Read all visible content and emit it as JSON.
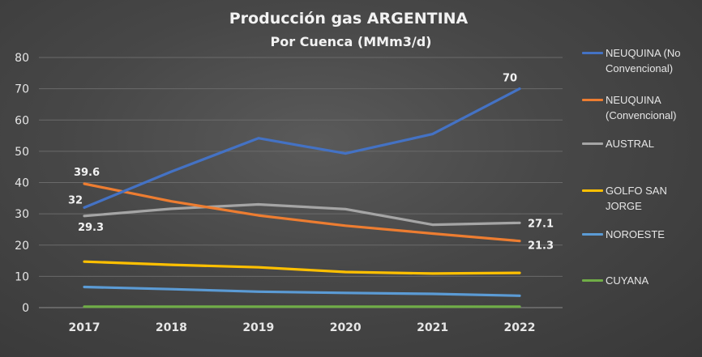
{
  "chart_data": {
    "type": "line",
    "title": "Producción gas ARGENTINA",
    "subtitle": "Por Cuenca (MMm3/d)",
    "categories": [
      "2017",
      "2018",
      "2019",
      "2020",
      "2021",
      "2022"
    ],
    "ylim": [
      0,
      80
    ],
    "yticks": [
      0,
      10,
      20,
      30,
      40,
      50,
      60,
      70,
      80
    ],
    "grid": true,
    "legend_position": "right",
    "series": [
      {
        "name": "NEUQUINA (No Convencional)",
        "color": "#4472C4",
        "values": [
          32,
          43.5,
          54.2,
          49.3,
          55.5,
          70
        ]
      },
      {
        "name": "NEUQUINA (Convencional)",
        "color": "#ED7D31",
        "values": [
          39.6,
          34,
          29.5,
          26.2,
          23.7,
          21.3
        ]
      },
      {
        "name": "AUSTRAL",
        "color": "#A5A5A5",
        "values": [
          29.3,
          31.6,
          33,
          31.5,
          26.5,
          27.1
        ]
      },
      {
        "name": "GOLFO SAN JORGE",
        "color": "#FFC000",
        "values": [
          14.7,
          13.7,
          12.9,
          11.4,
          10.9,
          11.1
        ]
      },
      {
        "name": "NOROESTE",
        "color": "#5B9BD5",
        "values": [
          6.6,
          5.9,
          5.1,
          4.7,
          4.4,
          3.8
        ]
      },
      {
        "name": "CUYANA",
        "color": "#70AD47",
        "values": [
          0.3,
          0.3,
          0.3,
          0.3,
          0.3,
          0.3
        ]
      }
    ],
    "data_labels": [
      {
        "series": 0,
        "index": 0,
        "text": "32"
      },
      {
        "series": 0,
        "index": 5,
        "text": "70"
      },
      {
        "series": 1,
        "index": 0,
        "text": "39.6"
      },
      {
        "series": 1,
        "index": 5,
        "text": "21.3"
      },
      {
        "series": 2,
        "index": 0,
        "text": "29.3"
      },
      {
        "series": 2,
        "index": 5,
        "text": "27.1"
      }
    ]
  }
}
